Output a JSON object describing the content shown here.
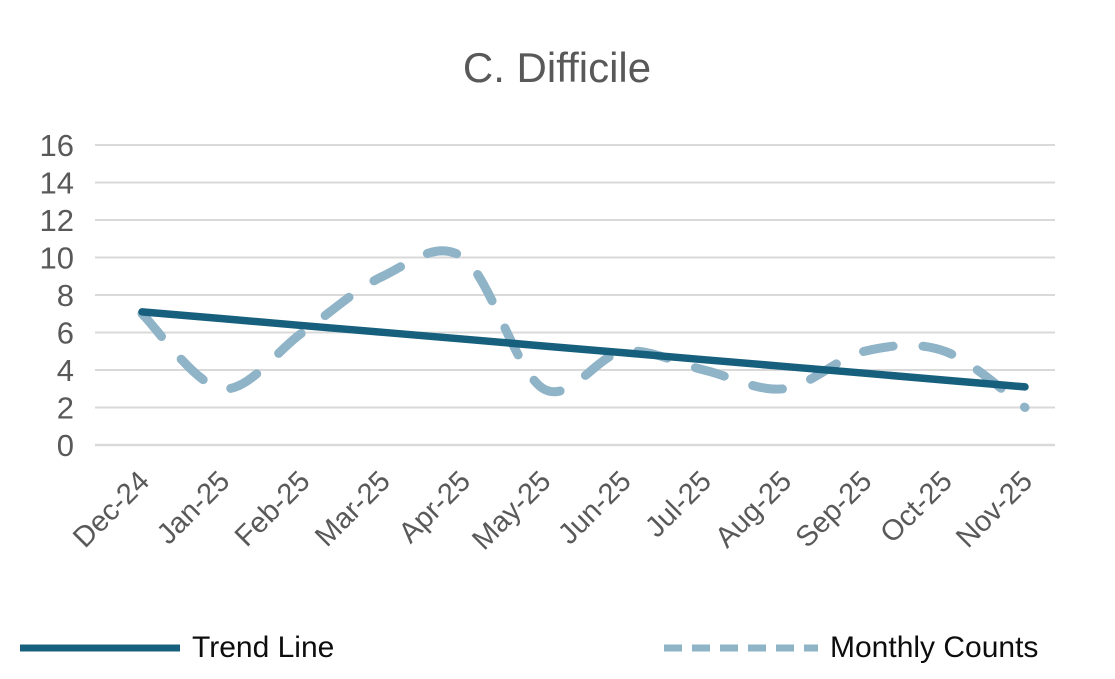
{
  "chart_data": {
    "type": "line",
    "title": "C. Difficile",
    "categories": [
      "Dec-24",
      "Jan-25",
      "Feb-25",
      "Mar-25",
      "Apr-25",
      "May-25",
      "Jun-25",
      "Jul-25",
      "Aug-25",
      "Sep-25",
      "Oct-25",
      "Nov-25"
    ],
    "series": [
      {
        "name": "Monthly Counts",
        "values": [
          7,
          3,
          6,
          9,
          10,
          3,
          5,
          4,
          3,
          5,
          5,
          2
        ],
        "line_style": "dashed",
        "smooth": true,
        "color": "#8FB3C7"
      },
      {
        "name": "Trend Line",
        "values": [
          7.1,
          6.74,
          6.37,
          6.01,
          5.65,
          5.28,
          4.92,
          4.55,
          4.19,
          3.83,
          3.46,
          3.1
        ],
        "line_style": "solid",
        "smooth": false,
        "color": "#17607D"
      }
    ],
    "xlabel": "",
    "ylabel": "",
    "ylim": [
      0,
      16
    ],
    "y_ticks": [
      0,
      2,
      4,
      6,
      8,
      10,
      12,
      14,
      16
    ],
    "grid": "horizontal",
    "gridline_color": "#D9D9D9",
    "axis_label_color": "#595959",
    "legend_position": "bottom"
  },
  "legend": {
    "items": [
      {
        "label": "Trend Line",
        "style": "solid",
        "color": "#17607D"
      },
      {
        "label": "Monthly Counts",
        "style": "dashed",
        "color": "#8FB3C7"
      }
    ]
  }
}
